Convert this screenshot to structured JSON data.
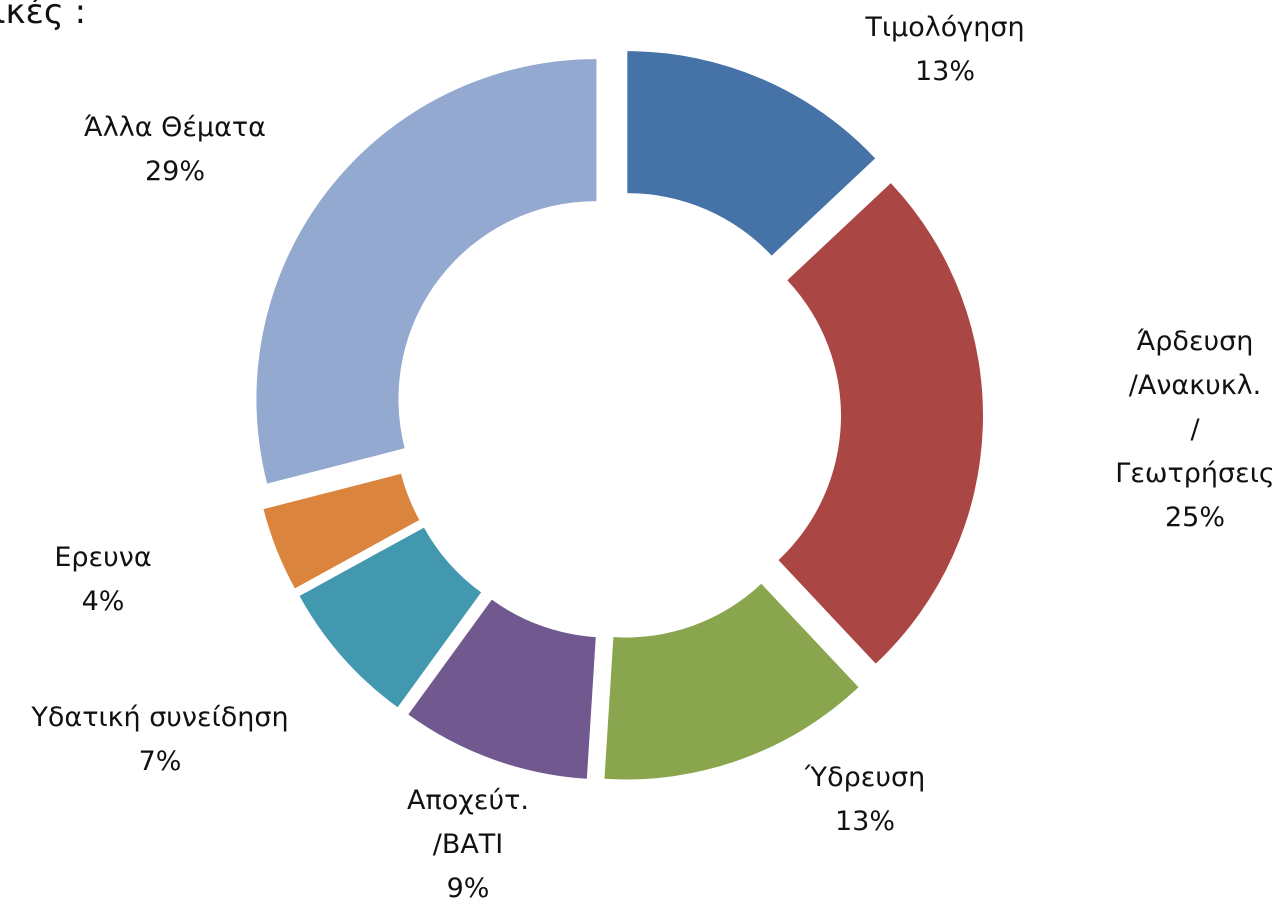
{
  "chart_data": {
    "type": "donut",
    "title": "ικές :",
    "categories": [
      "Τιμολόγηση",
      "Άρδευση\n/Ανακυκλ.\n/Γεωτρήσεις",
      "Ύδρευση",
      "Αποχεύτ.\n/ΒΑΤΙ",
      "Υδατική συνείδηση",
      "Ερευνα",
      "Άλλα Θέματα"
    ],
    "values": [
      13,
      25,
      13,
      9,
      7,
      4,
      29
    ],
    "value_labels": [
      "13%",
      "25%",
      "13%",
      "9%",
      "7%",
      "4%",
      "29%"
    ],
    "colors": [
      "#4572a7",
      "#aa4643",
      "#89a54e",
      "#71588f",
      "#4198af",
      "#db843d",
      "#93a9cf"
    ]
  }
}
